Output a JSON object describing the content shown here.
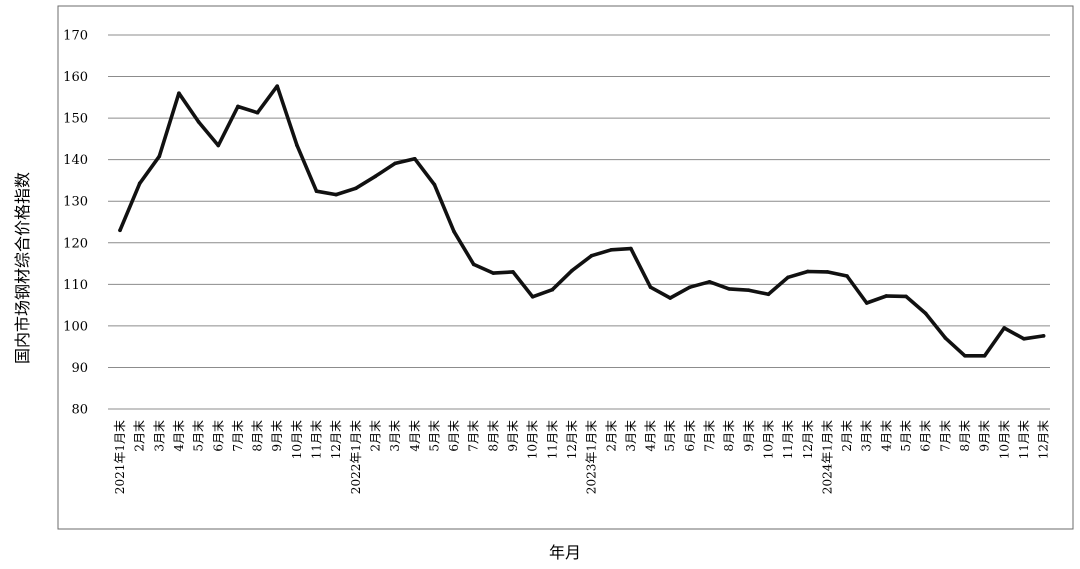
{
  "chart_data": {
    "type": "line",
    "title": "",
    "xlabel": "年月",
    "ylabel": "国内市场钢材综合价格指数",
    "ylim": [
      80,
      170
    ],
    "yticks": [
      80,
      90,
      100,
      110,
      120,
      130,
      140,
      150,
      160,
      170
    ],
    "grid": true,
    "categories": [
      "2021年1月末",
      "2月末",
      "3月末",
      "4月末",
      "5月末",
      "6月末",
      "7月末",
      "8月末",
      "9月末",
      "10月末",
      "11月末",
      "12月末",
      "2022年1月末",
      "2月末",
      "3月末",
      "4月末",
      "5月末",
      "6月末",
      "7月末",
      "8月末",
      "9月末",
      "10月末",
      "11月末",
      "12月末",
      "2023年1月末",
      "2月末",
      "3月末",
      "4月末",
      "5月末",
      "6月末",
      "7月末",
      "8月末",
      "9月末",
      "10月末",
      "11月末",
      "12月末",
      "2024年1月末",
      "2月末",
      "3月末",
      "4月末",
      "5月末",
      "6月末",
      "7月末",
      "8月末",
      "9月末",
      "10月末",
      "11月末",
      "12月末"
    ],
    "series": [
      {
        "values": [
          123.0,
          134.3,
          140.8,
          156.0,
          149.1,
          143.4,
          152.8,
          151.3,
          157.7,
          143.5,
          132.4,
          131.6,
          133.1,
          136.0,
          139.1,
          140.2,
          134.0,
          122.7,
          114.8,
          112.7,
          113.0,
          107.0,
          108.7,
          113.3,
          116.9,
          118.3,
          118.6,
          109.3,
          106.7,
          109.3,
          110.6,
          108.9,
          108.6,
          107.6,
          111.7,
          113.1,
          113.0,
          112.0,
          105.5,
          107.2,
          107.1,
          103.0,
          97.1,
          92.8,
          92.8,
          99.5,
          96.9,
          97.6
        ]
      }
    ]
  }
}
